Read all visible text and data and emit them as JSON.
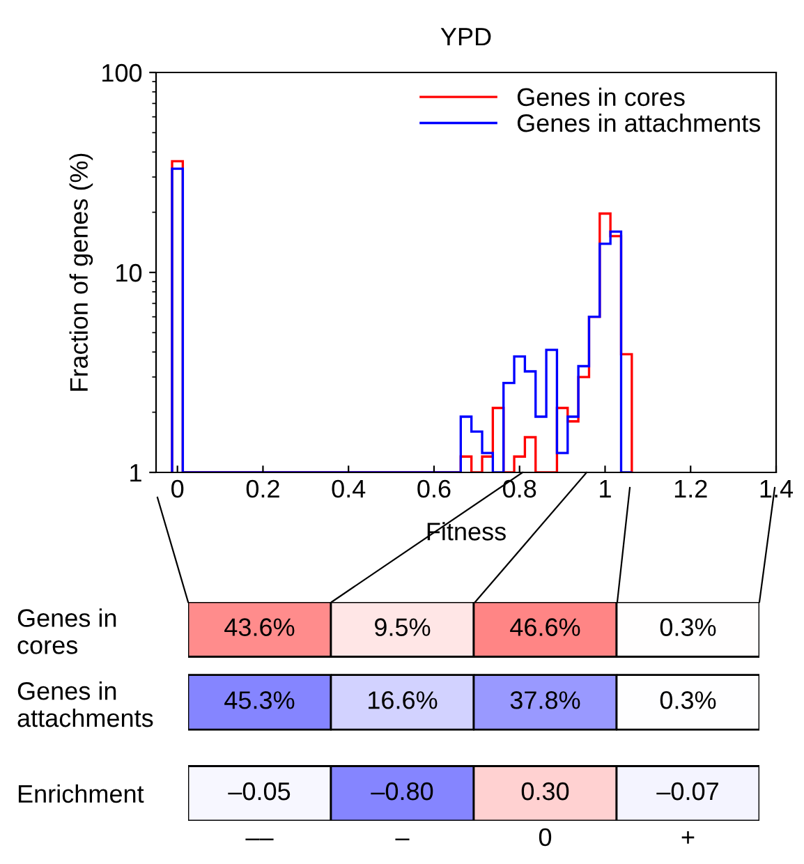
{
  "chart_data": [
    {
      "type": "histogram",
      "title": "YPD",
      "xlabel": "Fitness",
      "ylabel": "Fraction of genes (%)",
      "log": "y",
      "bins": [
        -0.0125,
        0.0125,
        0.6625,
        0.6875,
        0.7125,
        0.7375,
        0.7625,
        0.7875,
        0.8125,
        0.8375,
        0.8625,
        0.8875,
        0.9125,
        0.9375,
        0.9625,
        0.9875,
        1.0125,
        1.0375,
        1.0625
      ],
      "series": [
        {
          "name": "Genes in cores",
          "color": "#ff0000",
          "values": [
            36,
            null,
            1.2,
            null,
            1.2,
            2.1,
            null,
            1.2,
            1.5,
            null,
            null,
            2.1,
            1.8,
            3.0,
            6.0,
            19.7,
            15.2,
            3.9
          ]
        },
        {
          "name": "Genes in attachments",
          "color": "#0000ff",
          "values": [
            33,
            null,
            1.9,
            1.6,
            1.25,
            null,
            2.8,
            3.8,
            3.2,
            1.9,
            4.1,
            1.25,
            1.9,
            3.4,
            6.0,
            13.9,
            16.0,
            null
          ]
        }
      ],
      "xlim": [
        -0.05,
        1.4
      ],
      "xticks": [
        0,
        0.2,
        0.4,
        0.6,
        0.8,
        1,
        1.2,
        1.4
      ],
      "ylim": [
        1,
        100
      ],
      "yticks": [
        1,
        10,
        100
      ],
      "legend": "top right",
      "grid": false
    },
    {
      "type": "heatmap",
      "categories": [
        "––",
        "–",
        "0",
        "+"
      ],
      "y_categories": [
        "Genes in\ncores",
        "Genes in\nattachments",
        "Enrichment"
      ],
      "cells": [
        [
          43.6,
          9.5,
          46.6,
          0.3
        ],
        [
          45.3,
          16.6,
          37.8,
          0.3
        ],
        [
          -0.05,
          -0.8,
          0.3,
          -0.07
        ]
      ],
      "cell_labels": [
        [
          "43.6%",
          "9.5%",
          "46.6%",
          "0.3%"
        ],
        [
          "45.3%",
          "16.6%",
          "37.8%",
          "0.3%"
        ],
        [
          "–0.05",
          "–0.80",
          "0.30",
          "–0.07"
        ]
      ],
      "colors": [
        [
          "#ff0000"
        ],
        [
          "#0000ff"
        ],
        [
          "#0000ff",
          "#ff0000"
        ]
      ]
    }
  ]
}
